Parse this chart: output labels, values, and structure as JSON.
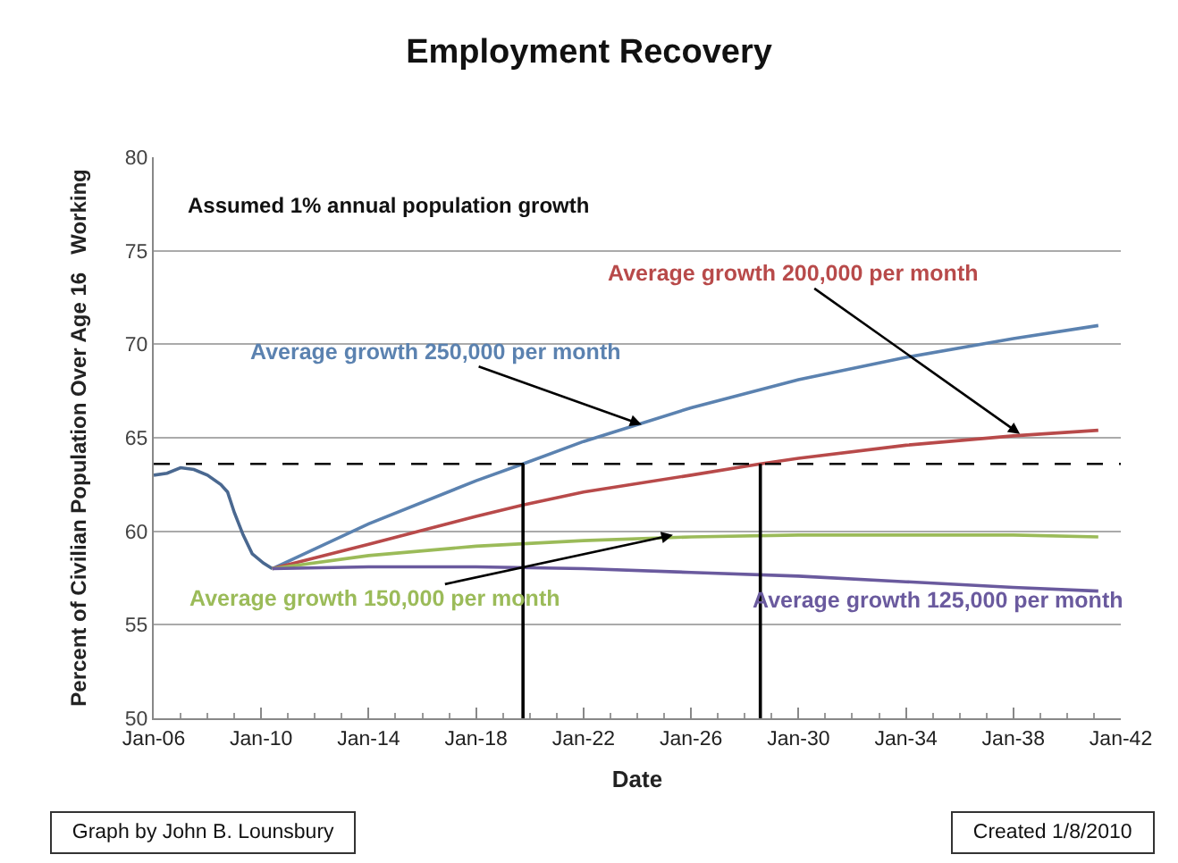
{
  "chart_data": {
    "type": "line",
    "title": "Employment Recovery",
    "xlabel": "Date",
    "ylabel": "Percent of Civilian Population Over Age 16   Working",
    "xlim": [
      "2006-01",
      "2042-01"
    ],
    "xticks": [
      {
        "value": "2006-01",
        "label": "Jan-06"
      },
      {
        "value": "2010-01",
        "label": "Jan-10"
      },
      {
        "value": "2014-01",
        "label": "Jan-14"
      },
      {
        "value": "2018-01",
        "label": "Jan-18"
      },
      {
        "value": "2022-01",
        "label": "Jan-22"
      },
      {
        "value": "2026-01",
        "label": "Jan-26"
      },
      {
        "value": "2030-01",
        "label": "Jan-30"
      },
      {
        "value": "2034-01",
        "label": "Jan-34"
      },
      {
        "value": "2038-01",
        "label": "Jan-38"
      },
      {
        "value": "2042-01",
        "label": "Jan-42"
      }
    ],
    "ylim": [
      50,
      80
    ],
    "yticks": [
      50,
      55,
      60,
      65,
      70,
      75,
      80
    ],
    "grid": "y",
    "marker": "none",
    "line_style": "solid",
    "series": [
      {
        "color": "#4a6890",
        "x": [
          "2006-01",
          "2006-07",
          "2007-01",
          "2007-07",
          "2008-01",
          "2008-07",
          "2008-10",
          "2009-01",
          "2009-05",
          "2009-09",
          "2010-02",
          "2010-06"
        ],
        "values": [
          63.0,
          63.1,
          63.4,
          63.3,
          63.0,
          62.5,
          62.1,
          61.0,
          59.8,
          58.8,
          58.3,
          58.0
        ]
      },
      {
        "color": "#5b82b0",
        "x": [
          "2010-06",
          "2014-01",
          "2018-01",
          "2019-10",
          "2022-01",
          "2026-01",
          "2030-01",
          "2034-01",
          "2038-01",
          "2041-03"
        ],
        "values": [
          58.0,
          60.4,
          62.7,
          63.6,
          64.8,
          66.6,
          68.1,
          69.3,
          70.3,
          71.0
        ]
      },
      {
        "color": "#b84a4a",
        "x": [
          "2010-06",
          "2014-01",
          "2018-01",
          "2019-10",
          "2022-01",
          "2026-01",
          "2028-08",
          "2030-01",
          "2034-01",
          "2038-01",
          "2041-03"
        ],
        "values": [
          58.0,
          59.3,
          60.8,
          61.4,
          62.1,
          63.0,
          63.6,
          63.9,
          64.6,
          65.1,
          65.4
        ]
      },
      {
        "color": "#9bbb59",
        "x": [
          "2010-06",
          "2014-01",
          "2018-01",
          "2022-01",
          "2026-01",
          "2030-01",
          "2034-01",
          "2038-01",
          "2041-03"
        ],
        "values": [
          58.0,
          58.7,
          59.2,
          59.5,
          59.7,
          59.8,
          59.8,
          59.8,
          59.7
        ]
      },
      {
        "color": "#6a5a9e",
        "x": [
          "2010-06",
          "2014-01",
          "2018-01",
          "2022-01",
          "2026-01",
          "2030-01",
          "2034-01",
          "2038-01",
          "2041-03"
        ],
        "values": [
          58.0,
          58.1,
          58.1,
          58.0,
          57.8,
          57.6,
          57.3,
          57.0,
          56.8
        ]
      },
      {
        "color": "#000000",
        "x": [
          "2019-10",
          "2019-10"
        ],
        "values": [
          50,
          63.6
        ]
      },
      {
        "color": "#000000",
        "x": [
          "2028-08",
          "2028-08"
        ],
        "values": [
          50,
          63.6
        ]
      }
    ],
    "ref_lines": [
      {
        "axis": "y",
        "value": 63.6,
        "color": "#000000",
        "line_style": "dashed"
      }
    ],
    "annotations": [
      "Assumed 1% annual population growth",
      {
        "text": "Average growth 250,000 per month",
        "x": "2024-03",
        "y": 65.7
      },
      {
        "text": "Average growth 200,000 per month",
        "x": "2038-04",
        "y": 65.2
      },
      {
        "text": "Average growth 150,000 per month",
        "x": "2025-05",
        "y": 59.8
      },
      {
        "text": "Average growth 125,000 per month",
        "x": "2040-09",
        "y": 56.9
      },
      "Graph by John B. Lounsbury",
      "Created 1/8/2010"
    ]
  }
}
